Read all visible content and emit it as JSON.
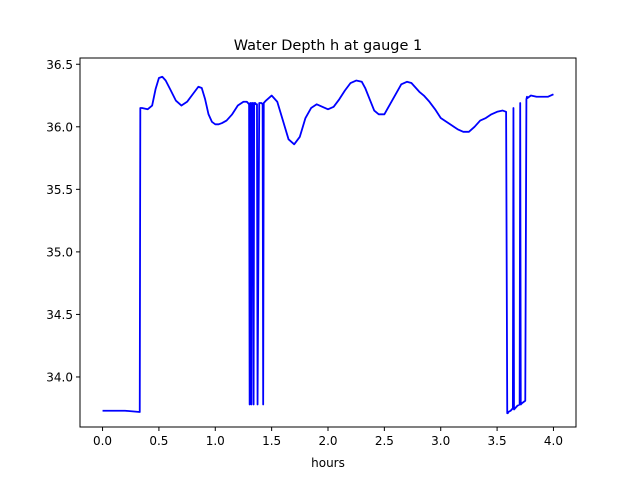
{
  "chart_data": {
    "type": "line",
    "title": "Water Depth h at gauge 1",
    "xlabel": "hours",
    "ylabel": "",
    "xlim": [
      -0.2,
      4.2
    ],
    "ylim": [
      33.6,
      36.55
    ],
    "xticks": [
      0.0,
      0.5,
      1.0,
      1.5,
      2.0,
      2.5,
      3.0,
      3.5,
      4.0
    ],
    "xtick_labels": [
      "0.0",
      "0.5",
      "1.0",
      "1.5",
      "2.0",
      "2.5",
      "3.0",
      "3.5",
      "4.0"
    ],
    "yticks": [
      34.0,
      34.5,
      35.0,
      35.5,
      36.0,
      36.5
    ],
    "ytick_labels": [
      "34.0",
      "34.5",
      "35.0",
      "35.5",
      "36.0",
      "36.5"
    ],
    "grid": false,
    "legend": "none",
    "series": [
      {
        "color": "#0000ff",
        "x": [
          0.0,
          0.1,
          0.2,
          0.33,
          0.335,
          0.35,
          0.4,
          0.44,
          0.47,
          0.5,
          0.53,
          0.56,
          0.6,
          0.65,
          0.7,
          0.75,
          0.8,
          0.85,
          0.88,
          0.91,
          0.94,
          0.97,
          1.0,
          1.03,
          1.06,
          1.1,
          1.15,
          1.2,
          1.25,
          1.28,
          1.3,
          1.305,
          1.31,
          1.315,
          1.32,
          1.325,
          1.33,
          1.335,
          1.34,
          1.345,
          1.35,
          1.355,
          1.36,
          1.37,
          1.375,
          1.39,
          1.41,
          1.42,
          1.425,
          1.43,
          1.45,
          1.5,
          1.55,
          1.6,
          1.65,
          1.7,
          1.75,
          1.8,
          1.85,
          1.9,
          1.95,
          2.0,
          2.05,
          2.1,
          2.15,
          2.2,
          2.25,
          2.3,
          2.33,
          2.37,
          2.41,
          2.45,
          2.5,
          2.55,
          2.6,
          2.65,
          2.7,
          2.74,
          2.78,
          2.81,
          2.85,
          2.9,
          2.95,
          3.0,
          3.05,
          3.1,
          3.15,
          3.2,
          3.25,
          3.3,
          3.35,
          3.4,
          3.45,
          3.5,
          3.55,
          3.58,
          3.59,
          3.595,
          3.6,
          3.62,
          3.64,
          3.645,
          3.65,
          3.66,
          3.68,
          3.7,
          3.705,
          3.71,
          3.72,
          3.75,
          3.76,
          3.765,
          3.77,
          3.8,
          3.85,
          3.9,
          3.95,
          4.0
        ],
        "y": [
          33.73,
          33.73,
          33.73,
          33.72,
          36.15,
          36.15,
          36.14,
          36.17,
          36.3,
          36.39,
          36.4,
          36.37,
          36.3,
          36.21,
          36.17,
          36.2,
          36.26,
          36.32,
          36.31,
          36.22,
          36.1,
          36.04,
          36.02,
          36.02,
          36.03,
          36.05,
          36.1,
          36.17,
          36.2,
          36.2,
          36.18,
          33.78,
          36.19,
          36.19,
          33.78,
          36.19,
          36.19,
          36.19,
          33.78,
          36.19,
          36.19,
          36.19,
          36.18,
          36.18,
          33.78,
          36.19,
          36.19,
          36.18,
          33.78,
          36.19,
          36.21,
          36.25,
          36.2,
          36.05,
          35.9,
          35.86,
          35.92,
          36.07,
          36.15,
          36.18,
          36.16,
          36.14,
          36.16,
          36.22,
          36.29,
          36.35,
          36.37,
          36.36,
          36.31,
          36.22,
          36.13,
          36.1,
          36.1,
          36.18,
          36.26,
          36.34,
          36.36,
          36.35,
          36.31,
          36.28,
          36.25,
          36.2,
          36.14,
          36.07,
          36.04,
          36.01,
          35.98,
          35.96,
          35.96,
          36.0,
          36.05,
          36.07,
          36.1,
          36.12,
          36.13,
          36.12,
          33.71,
          33.71,
          33.72,
          33.73,
          33.75,
          36.15,
          33.74,
          33.75,
          33.77,
          33.78,
          36.19,
          33.78,
          33.79,
          33.81,
          36.22,
          36.24,
          36.23,
          36.25,
          36.24,
          36.24,
          36.24,
          36.26
        ]
      }
    ]
  }
}
